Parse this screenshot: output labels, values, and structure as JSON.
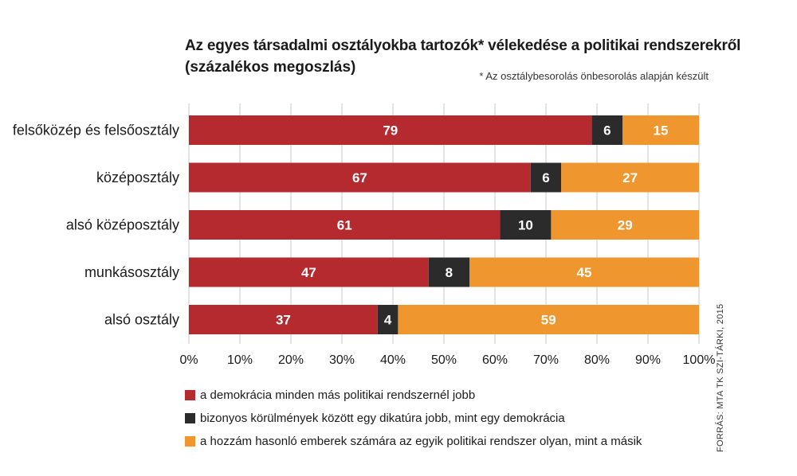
{
  "chart_data": {
    "type": "bar",
    "orientation": "horizontal",
    "stacked": true,
    "title": "Az egyes társadalmi osztályokba tartozók* vélekedése a politikai rendszerekről",
    "subtitle": "(százalékos megoszlás)",
    "footnote": "* Az osztálybesorolás önbesorolás alapján készült",
    "categories": [
      "felsőközép és felsőosztály",
      "középosztály",
      "alsó középosztály",
      "munkásosztály",
      "alsó osztály"
    ],
    "series": [
      {
        "name": "a demokrácia minden más politikai rendszernél jobb",
        "color": "#b52a2e",
        "values": [
          79,
          67,
          61,
          47,
          37
        ]
      },
      {
        "name": "bizonyos körülmények között egy dikatúra jobb, mint egy demokrácia",
        "color": "#2b2b2b",
        "values": [
          6,
          6,
          10,
          8,
          4
        ]
      },
      {
        "name": "a hozzám hasonló emberek számára az egyik politikai rendszer olyan, mint a másik",
        "color": "#f0962f",
        "values": [
          15,
          27,
          29,
          45,
          59
        ]
      }
    ],
    "xlim": [
      0,
      100
    ],
    "xticks": [
      "0%",
      "10%",
      "20%",
      "30%",
      "40%",
      "50%",
      "60%",
      "70%",
      "80%",
      "90%",
      "100%"
    ],
    "grid": true,
    "legend_position": "bottom",
    "source": "FORRÁS: MTA TK SZI-TÁRKI, 2015"
  }
}
